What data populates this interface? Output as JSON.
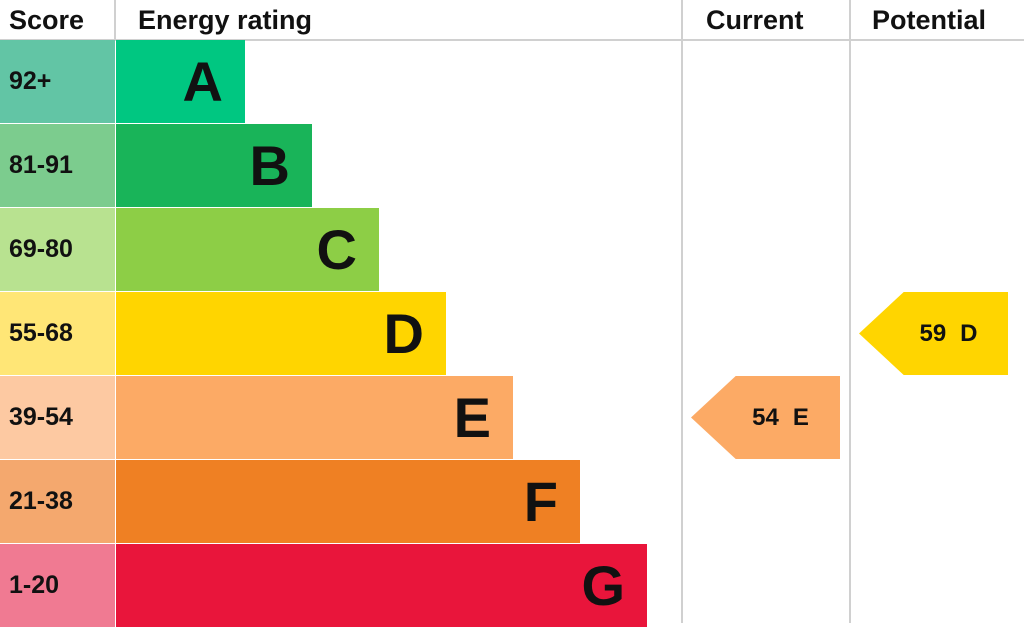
{
  "chart_data": {
    "type": "bar",
    "headers": {
      "score": "Score",
      "rating": "Energy rating",
      "current": "Current",
      "potential": "Potential"
    },
    "bands": [
      {
        "score": "92+",
        "letter": "A",
        "color": "#00c781",
        "score_color": "#62c5a5"
      },
      {
        "score": "81-91",
        "letter": "B",
        "color": "#19b459",
        "score_color": "#7ccc8e"
      },
      {
        "score": "69-80",
        "letter": "C",
        "color": "#8dce46",
        "score_color": "#b8e290"
      },
      {
        "score": "55-68",
        "letter": "D",
        "color": "#ffd500",
        "score_color": "#ffe676"
      },
      {
        "score": "39-54",
        "letter": "E",
        "color": "#fcaa65",
        "score_color": "#fdc9a2"
      },
      {
        "score": "21-38",
        "letter": "F",
        "color": "#ef8023",
        "score_color": "#f4a86e"
      },
      {
        "score": "1-20",
        "letter": "G",
        "color": "#e9153b",
        "score_color": "#f07a92"
      }
    ],
    "current": {
      "value": "54",
      "letter": "E",
      "color": "#fcaa65"
    },
    "potential": {
      "value": "59",
      "letter": "D",
      "color": "#ffd500"
    }
  }
}
